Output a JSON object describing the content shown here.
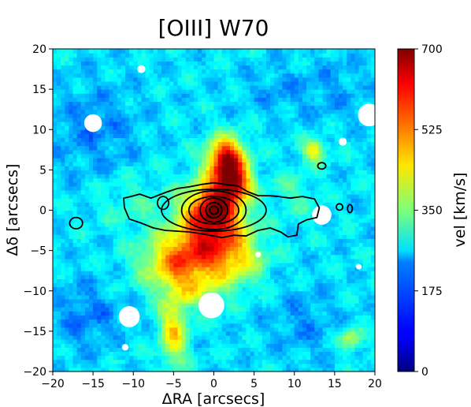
{
  "chart_data": {
    "type": "heatmap",
    "title": "[OIII] W70",
    "xlabel": "ΔRA [arcsecs]",
    "ylabel": "Δδ [arcsecs]",
    "xlim": [
      -20,
      20
    ],
    "ylim": [
      -20,
      20
    ],
    "x_ticks": [
      -20,
      -15,
      -10,
      -5,
      0,
      5,
      10,
      15,
      20
    ],
    "y_ticks": [
      -20,
      -15,
      -10,
      -5,
      0,
      5,
      10,
      15,
      20
    ],
    "colorbar": {
      "label": "vel [km/s]",
      "range": [
        0,
        700
      ],
      "ticks": [
        0,
        175,
        350,
        525,
        700
      ],
      "colormap": "jet"
    },
    "background_value": 245,
    "blobs": [
      {
        "x": 0,
        "y": 0,
        "sx": 2.5,
        "sy": 2.5,
        "value": 430
      },
      {
        "x": 1.5,
        "y": 6.5,
        "sx": 1.6,
        "sy": 1.8,
        "value": 400
      },
      {
        "x": 2.5,
        "y": 3.5,
        "sx": 1.5,
        "sy": 1.5,
        "value": 320
      },
      {
        "x": -1.5,
        "y": -5,
        "sx": 3.5,
        "sy": 2.5,
        "value": 230
      },
      {
        "x": -5,
        "y": -7,
        "sx": 3.0,
        "sy": 2.5,
        "value": 170
      },
      {
        "x": 3,
        "y": -6,
        "sx": 2.5,
        "sy": 2.5,
        "value": 130
      },
      {
        "x": -5,
        "y": -15,
        "sx": 1.2,
        "sy": 3.0,
        "value": 210
      },
      {
        "x": -2,
        "y": -10,
        "sx": 2.0,
        "sy": 1.5,
        "value": 90
      },
      {
        "x": 12.5,
        "y": 7.5,
        "sx": 1.0,
        "sy": 1.0,
        "value": 200
      },
      {
        "x": 10,
        "y": 2,
        "sx": 2.0,
        "sy": 2.0,
        "value": 60
      },
      {
        "x": -10,
        "y": 1,
        "sx": 3.0,
        "sy": 2.5,
        "value": 50
      },
      {
        "x": 17,
        "y": -16,
        "sx": 1.0,
        "sy": 1.0,
        "value": 150
      },
      {
        "x": -15,
        "y": 10,
        "sx": 4.0,
        "sy": 4.0,
        "value": -60
      },
      {
        "x": -16,
        "y": -13,
        "sx": 3.0,
        "sy": 3.0,
        "value": -70
      },
      {
        "x": 15,
        "y": 15,
        "sx": 3.0,
        "sy": 3.0,
        "value": -40
      },
      {
        "x": 11,
        "y": -14,
        "sx": 3.0,
        "sy": 3.0,
        "value": -50
      },
      {
        "x": 8,
        "y": 15,
        "sx": 3.0,
        "sy": 2.0,
        "value": -40
      }
    ],
    "masked_circles": [
      {
        "x": -15,
        "y": 10.8,
        "r": 1.1
      },
      {
        "x": 19.3,
        "y": 11.8,
        "r": 1.4
      },
      {
        "x": -0.3,
        "y": -11.8,
        "r": 1.6
      },
      {
        "x": -10.5,
        "y": -13.2,
        "r": 1.3
      },
      {
        "x": 13.4,
        "y": -0.6,
        "r": 1.2
      },
      {
        "x": 16,
        "y": 8.5,
        "r": 0.5
      },
      {
        "x": -9,
        "y": 17.5,
        "r": 0.5
      },
      {
        "x": 5.5,
        "y": -5.5,
        "r": 0.35
      },
      {
        "x": -11,
        "y": -17,
        "r": 0.4
      },
      {
        "x": 18,
        "y": -7,
        "r": 0.35
      }
    ],
    "contours": {
      "center": [
        0,
        0
      ],
      "rings": [
        {
          "rx": 0.55,
          "ry": 0.5
        },
        {
          "rx": 1.0,
          "ry": 0.95
        },
        {
          "rx": 1.7,
          "ry": 1.5
        },
        {
          "rx": 3.1,
          "ry": 1.7
        },
        {
          "rx": 4.0,
          "ry": 2.4
        },
        {
          "rx": 6.5,
          "ry": 2.6
        }
      ],
      "outer_polyline": [
        [
          -11.1,
          0.3
        ],
        [
          -11.2,
          1.5
        ],
        [
          -10.3,
          1.7
        ],
        [
          -9.2,
          2.0
        ],
        [
          -7.8,
          1.5
        ],
        [
          -6.0,
          2.2
        ],
        [
          -4.5,
          2.7
        ],
        [
          -3.0,
          2.9
        ],
        [
          -1.5,
          3.2
        ],
        [
          0,
          3.4
        ],
        [
          1.5,
          3.2
        ],
        [
          3.0,
          3.0
        ],
        [
          4.2,
          2.3
        ],
        [
          5.5,
          1.8
        ],
        [
          6.9,
          1.8
        ],
        [
          8.0,
          1.7
        ],
        [
          9.5,
          1.5
        ],
        [
          11.0,
          1.7
        ],
        [
          12.5,
          1.4
        ],
        [
          13.1,
          0.3
        ],
        [
          12.8,
          -0.9
        ],
        [
          11.5,
          -1.2
        ],
        [
          10.5,
          -1.7
        ],
        [
          10.3,
          -3.1
        ],
        [
          9.2,
          -3.3
        ],
        [
          8.3,
          -2.7
        ],
        [
          7.0,
          -2.2
        ],
        [
          5.5,
          -2.5
        ],
        [
          4.0,
          -3.2
        ],
        [
          2.5,
          -3.1
        ],
        [
          1.0,
          -3.4
        ],
        [
          -1.0,
          -3.0
        ],
        [
          -3.0,
          -2.7
        ],
        [
          -4.5,
          -2.6
        ],
        [
          -6.0,
          -2.5
        ],
        [
          -7.5,
          -2.2
        ],
        [
          -9.0,
          -1.6
        ],
        [
          -10.5,
          -1.1
        ],
        [
          -11.1,
          0.3
        ]
      ],
      "islands": [
        {
          "x": -17.1,
          "y": -1.6,
          "rx": 0.8,
          "ry": 0.7
        },
        {
          "x": -6.3,
          "y": 0.9,
          "rx": 0.7,
          "ry": 0.8
        },
        {
          "x": 13.4,
          "y": 5.5,
          "rx": 0.5,
          "ry": 0.4
        },
        {
          "x": 16.9,
          "y": 0.2,
          "rx": 0.3,
          "ry": 0.5
        },
        {
          "x": 15.6,
          "y": 0.4,
          "rx": 0.4,
          "ry": 0.4
        }
      ]
    }
  }
}
